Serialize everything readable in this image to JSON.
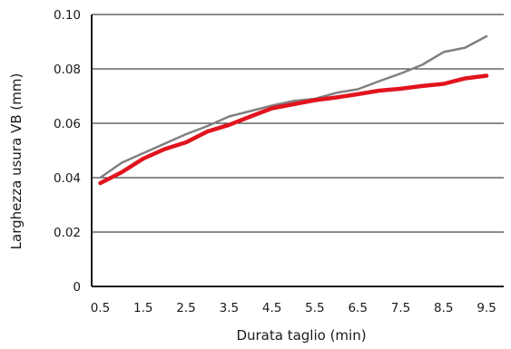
{
  "chart_data": {
    "type": "line",
    "title": "",
    "xlabel": "Durata taglio (min)",
    "ylabel": "Larghezza usura VB (mm)",
    "xlim": [
      0.3,
      9.9
    ],
    "ylim": [
      0,
      0.1
    ],
    "x_ticks": [
      0.5,
      1.5,
      2.5,
      3.5,
      4.5,
      5.5,
      6.5,
      7.5,
      8.5,
      9.5
    ],
    "x_tick_labels": [
      "0.5",
      "1.5",
      "2.5",
      "3.5",
      "4.5",
      "5.5",
      "6.5",
      "7.5",
      "8.5",
      "9.5"
    ],
    "y_ticks": [
      0,
      0.02,
      0.04,
      0.06,
      0.08,
      0.1
    ],
    "y_tick_labels": [
      "0",
      "0.02",
      "0.04",
      "0.06",
      "0.08",
      "0.10"
    ],
    "grid": "horizontal",
    "legend": "none",
    "series": [
      {
        "color": "#808080",
        "x": [
          0.5,
          1.0,
          1.5,
          2.0,
          2.5,
          3.0,
          3.5,
          4.0,
          4.5,
          5.0,
          5.5,
          6.0,
          6.5,
          7.0,
          7.5,
          8.0,
          8.5,
          9.0,
          9.5
        ],
        "y": [
          0.04,
          0.0455,
          0.049,
          0.0525,
          0.056,
          0.059,
          0.0625,
          0.0645,
          0.0665,
          0.0682,
          0.069,
          0.0712,
          0.0725,
          0.0755,
          0.0783,
          0.0815,
          0.0862,
          0.0878,
          0.092
        ]
      },
      {
        "color": "#e1141e",
        "x": [
          0.5,
          1.0,
          1.5,
          2.0,
          2.5,
          3.0,
          3.5,
          4.0,
          4.5,
          5.0,
          5.5,
          6.0,
          6.5,
          7.0,
          7.5,
          8.0,
          8.5,
          9.0,
          9.5
        ],
        "y": [
          0.038,
          0.042,
          0.047,
          0.0505,
          0.053,
          0.057,
          0.0594,
          0.0625,
          0.0655,
          0.067,
          0.0685,
          0.0695,
          0.0707,
          0.072,
          0.0727,
          0.0737,
          0.0745,
          0.0765,
          0.0775
        ]
      }
    ]
  }
}
